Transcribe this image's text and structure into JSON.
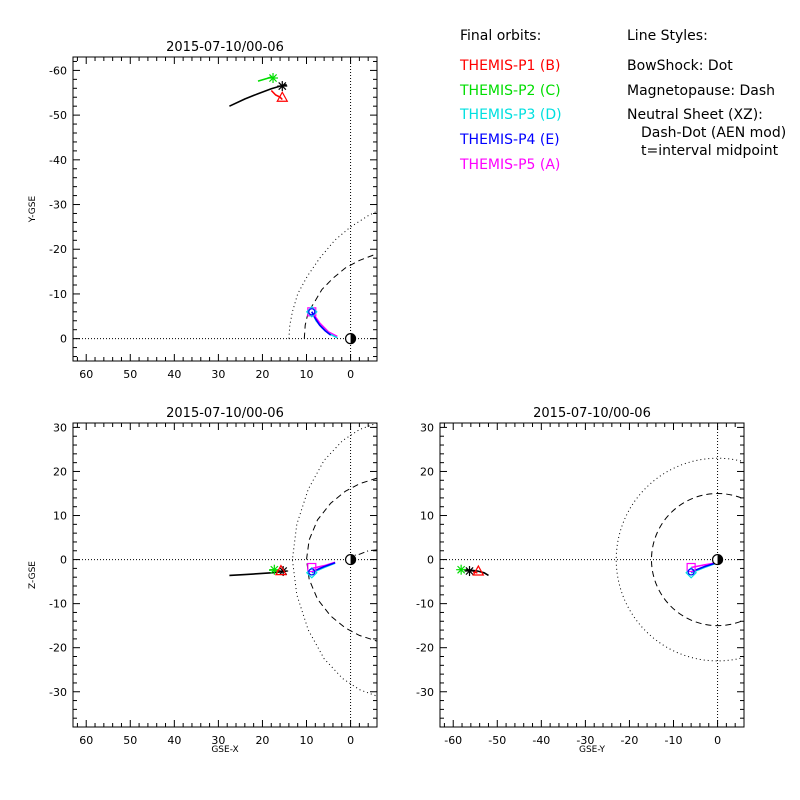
{
  "legend": {
    "orbits_title": "Final orbits:",
    "orbits": [
      {
        "label": "THEMIS-P1 (B)",
        "color": "#ff0000"
      },
      {
        "label": "THEMIS-P2 (C)",
        "color": "#00dd00"
      },
      {
        "label": "THEMIS-P3 (D)",
        "color": "#00e0e0"
      },
      {
        "label": "THEMIS-P4 (E)",
        "color": "#0000ff"
      },
      {
        "label": "THEMIS-P5 (A)",
        "color": "#ff00ff"
      }
    ],
    "styles_title": "Line Styles:",
    "styles": [
      "BowShock: Dot",
      "Magnetopause: Dash",
      "Neutral Sheet (XZ):",
      "Dash-Dot (AEN mod)",
      "t=interval midpoint"
    ]
  },
  "chart_data": [
    {
      "type": "line",
      "title": "2015-07-10/00-06",
      "xlabel": "",
      "ylabel": "Y-GSE",
      "xlim": [
        63,
        -6
      ],
      "ylim": [
        5,
        -63
      ],
      "xticks": [
        60,
        50,
        40,
        30,
        20,
        10,
        0
      ],
      "yticks": [
        -60,
        -50,
        -40,
        -30,
        -20,
        -10,
        0
      ],
      "earth": [
        0,
        0
      ],
      "series": [
        {
          "role": "orbit",
          "color": "#000000",
          "points": [
            [
              27.5,
              -52.0
            ],
            [
              24,
              -53.6
            ],
            [
              21,
              -54.8
            ],
            [
              18,
              -55.9
            ],
            [
              16,
              -56.5
            ],
            [
              14.5,
              -56.8
            ]
          ]
        },
        {
          "role": "orbit",
          "color": "#00dd00",
          "points": [
            [
              21,
              -57.6
            ],
            [
              19,
              -58.2
            ],
            [
              17.8,
              -58.6
            ]
          ]
        },
        {
          "role": "orbit",
          "color": "#ff0000",
          "points": [
            [
              18,
              -55.5
            ],
            [
              17,
              -54.5
            ],
            [
              16,
              -54.0
            ],
            [
              15.5,
              -53.5
            ]
          ]
        },
        {
          "role": "orbit",
          "color": "#ff00ff",
          "points": [
            [
              8.8,
              -6.0
            ],
            [
              7,
              -3.5
            ],
            [
              5,
              -1.5
            ],
            [
              3,
              -0.5
            ]
          ]
        },
        {
          "role": "orbit",
          "color": "#00e0e0",
          "points": [
            [
              8.8,
              -6.0
            ],
            [
              7.8,
              -4.0
            ],
            [
              6.5,
              -2.5
            ],
            [
              5,
              -1.2
            ],
            [
              3,
              -0.2
            ]
          ]
        },
        {
          "role": "orbit",
          "color": "#0000ff",
          "points": [
            [
              8.8,
              -6.0
            ],
            [
              8,
              -4.5
            ],
            [
              7,
              -3.0
            ],
            [
              5.8,
              -1.8
            ],
            [
              4.5,
              -0.8
            ]
          ]
        }
      ],
      "markers": [
        {
          "symbol": "star",
          "color": "#000000",
          "x": 15.5,
          "y": -56.5
        },
        {
          "symbol": "star",
          "color": "#00dd00",
          "x": 17.6,
          "y": -58.3
        },
        {
          "symbol": "triangle",
          "color": "#ff0000",
          "x": 15.5,
          "y": -54.0
        },
        {
          "symbol": "square",
          "color": "#ff00ff",
          "x": 8.8,
          "y": -6.0
        },
        {
          "symbol": "diamond",
          "color": "#00e0e0",
          "x": 8.8,
          "y": -6.0
        },
        {
          "symbol": "circle",
          "color": "#0000ff",
          "x": 8.8,
          "y": -6.0
        }
      ],
      "boundaries": [
        {
          "name": "BowShock",
          "style": "dot",
          "points": [
            [
              14.0,
              0
            ],
            [
              13.8,
              -3
            ],
            [
              13.2,
              -6
            ],
            [
              12.0,
              -10
            ],
            [
              9.8,
              -14
            ],
            [
              7.0,
              -18
            ],
            [
              3.6,
              -22
            ],
            [
              0,
              -25
            ],
            [
              -4,
              -27.5
            ],
            [
              -6,
              -28.5
            ]
          ]
        },
        {
          "name": "Magnetopause",
          "style": "dash",
          "points": [
            [
              10.5,
              0
            ],
            [
              10.3,
              -3
            ],
            [
              9.6,
              -6
            ],
            [
              8.3,
              -8
            ],
            [
              6.5,
              -11
            ],
            [
              4.0,
              -13.5
            ],
            [
              1.2,
              -15.8
            ],
            [
              -2,
              -17.5
            ],
            [
              -6,
              -19
            ]
          ]
        }
      ]
    },
    {
      "type": "line",
      "title": "2015-07-10/00-06",
      "xlabel": "GSE-X",
      "ylabel": "Z-GSE",
      "xlim": [
        63,
        -6
      ],
      "ylim": [
        -38,
        31
      ],
      "xticks": [
        60,
        50,
        40,
        30,
        20,
        10,
        0
      ],
      "yticks": [
        30,
        20,
        10,
        0,
        -10,
        -20,
        -30
      ],
      "earth": [
        0,
        0
      ],
      "series": [
        {
          "role": "orbit",
          "color": "#000000",
          "points": [
            [
              27.5,
              -3.6
            ],
            [
              24,
              -3.4
            ],
            [
              21,
              -3.2
            ],
            [
              18,
              -3.0
            ],
            [
              16,
              -2.8
            ],
            [
              14.5,
              -2.6
            ]
          ]
        },
        {
          "role": "orbit",
          "color": "#00dd00",
          "points": [
            [
              18.5,
              -2.4
            ],
            [
              17.2,
              -2.3
            ]
          ]
        },
        {
          "role": "orbit",
          "color": "#ff0000",
          "points": [
            [
              17,
              -2.6
            ],
            [
              16,
              -2.6
            ]
          ]
        },
        {
          "role": "orbit",
          "color": "#ff00ff",
          "points": [
            [
              8.8,
              -2.0
            ],
            [
              6,
              -1.4
            ],
            [
              3.5,
              -0.6
            ]
          ]
        },
        {
          "role": "orbit",
          "color": "#00e0e0",
          "points": [
            [
              8.8,
              -3.0
            ],
            [
              6,
              -1.8
            ],
            [
              3.5,
              -0.8
            ]
          ]
        },
        {
          "role": "orbit",
          "color": "#0000ff",
          "points": [
            [
              8.8,
              -2.8
            ],
            [
              6,
              -1.6
            ],
            [
              3.5,
              -0.7
            ]
          ]
        }
      ],
      "markers": [
        {
          "symbol": "star",
          "color": "#000000",
          "x": 15.3,
          "y": -2.6
        },
        {
          "symbol": "star",
          "color": "#00dd00",
          "x": 17.3,
          "y": -2.3
        },
        {
          "symbol": "triangle",
          "color": "#ff0000",
          "x": 15.8,
          "y": -2.5
        },
        {
          "symbol": "square",
          "color": "#ff00ff",
          "x": 8.8,
          "y": -1.8
        },
        {
          "symbol": "diamond",
          "color": "#00e0e0",
          "x": 8.8,
          "y": -3.0
        },
        {
          "symbol": "circle",
          "color": "#0000ff",
          "x": 8.8,
          "y": -2.8
        }
      ],
      "boundaries": [
        {
          "name": "BowShock",
          "style": "dot",
          "points": [
            [
              -6,
              31
            ],
            [
              -2,
              29.5
            ],
            [
              1.8,
              27
            ],
            [
              6,
              22.5
            ],
            [
              9.6,
              16
            ],
            [
              12.2,
              8
            ],
            [
              13.2,
              0
            ],
            [
              12.2,
              -8
            ],
            [
              9.6,
              -16
            ],
            [
              6,
              -22.5
            ],
            [
              1.8,
              -27
            ],
            [
              -2,
              -29.5
            ],
            [
              -6,
              -31
            ]
          ]
        },
        {
          "name": "Magnetopause",
          "style": "dash",
          "points": [
            [
              -6,
              18.5
            ],
            [
              -2,
              17.2
            ],
            [
              1.2,
              15.5
            ],
            [
              4.5,
              12.8
            ],
            [
              7.5,
              9
            ],
            [
              9.4,
              4.5
            ],
            [
              10,
              0
            ],
            [
              9.4,
              -4.5
            ],
            [
              7.5,
              -9
            ],
            [
              4.5,
              -12.8
            ],
            [
              1.2,
              -15.5
            ],
            [
              -2,
              -17.2
            ],
            [
              -6,
              -18.5
            ]
          ]
        },
        {
          "name": "Neutral Sheet",
          "style": "dashdot",
          "points": [
            [
              -6,
              2.2
            ],
            [
              -4,
              2.0
            ],
            [
              -2,
              1.2
            ],
            [
              0,
              0.8
            ]
          ]
        }
      ]
    },
    {
      "type": "line",
      "title": "2015-07-10/00-06",
      "xlabel": "GSE-Y",
      "ylabel": "",
      "xlim": [
        -63,
        6
      ],
      "ylim": [
        -38,
        31
      ],
      "xticks": [
        -60,
        -50,
        -40,
        -30,
        -20,
        -10,
        0
      ],
      "yticks": [
        30,
        20,
        10,
        0,
        -10,
        -20,
        -30
      ],
      "earth": [
        0,
        0
      ],
      "series": [
        {
          "role": "orbit",
          "color": "#000000",
          "points": [
            [
              -57.5,
              -2.3
            ],
            [
              -56,
              -2.4
            ],
            [
              -54.5,
              -2.6
            ],
            [
              -53,
              -3.0
            ],
            [
              -52,
              -3.6
            ]
          ]
        },
        {
          "role": "orbit",
          "color": "#ff0000",
          "points": [
            [
              -55.5,
              -2.8
            ],
            [
              -54.5,
              -3.0
            ]
          ]
        },
        {
          "role": "orbit",
          "color": "#ff00ff",
          "points": [
            [
              -6.0,
              -1.8
            ],
            [
              -3,
              -1.2
            ],
            [
              -0.5,
              -0.8
            ]
          ]
        },
        {
          "role": "orbit",
          "color": "#00e0e0",
          "points": [
            [
              -6.0,
              -3.0
            ],
            [
              -3,
              -1.8
            ],
            [
              -0.5,
              -0.9
            ]
          ]
        },
        {
          "role": "orbit",
          "color": "#0000ff",
          "points": [
            [
              -6.0,
              -2.8
            ],
            [
              -3,
              -1.6
            ],
            [
              -0.5,
              -0.8
            ]
          ]
        }
      ],
      "markers": [
        {
          "symbol": "star",
          "color": "#00dd00",
          "x": -58.2,
          "y": -2.3
        },
        {
          "symbol": "star",
          "color": "#000000",
          "x": -56.3,
          "y": -2.6
        },
        {
          "symbol": "triangle",
          "color": "#ff0000",
          "x": -54.3,
          "y": -2.6
        },
        {
          "symbol": "square",
          "color": "#ff00ff",
          "x": -6.0,
          "y": -1.8
        },
        {
          "symbol": "diamond",
          "color": "#00e0e0",
          "x": -6.0,
          "y": -3.0
        },
        {
          "symbol": "circle",
          "color": "#0000ff",
          "x": -6.0,
          "y": -2.8
        }
      ],
      "circles": [
        {
          "name": "BowShock",
          "style": "dot",
          "cx": 0,
          "cy": 0,
          "r": 23
        },
        {
          "name": "Magnetopause",
          "style": "dash",
          "cx": 0,
          "cy": 0,
          "r": 15
        }
      ]
    }
  ]
}
